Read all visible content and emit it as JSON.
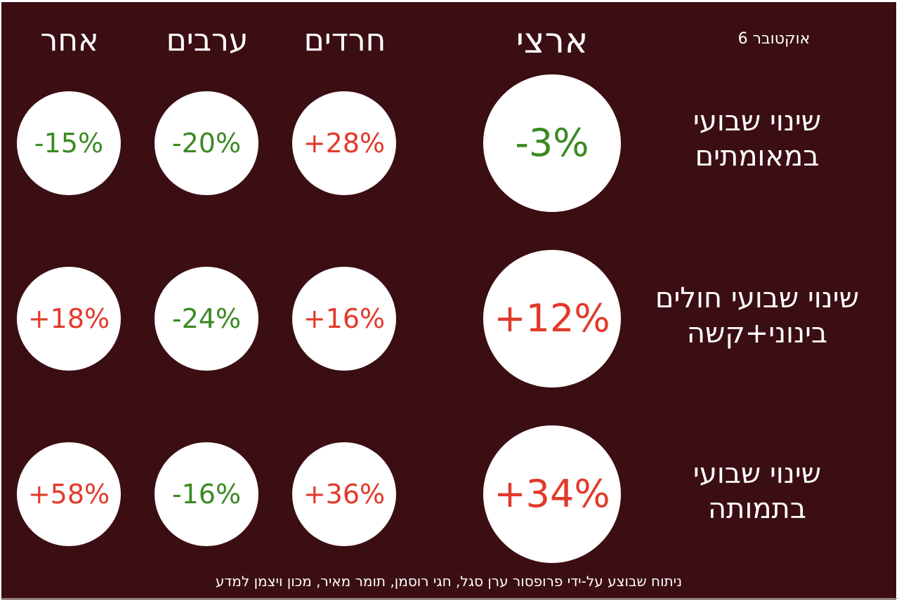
{
  "header": {
    "date": "אוקטובר 6",
    "columns": {
      "national": "ארצי",
      "haredi": "חרדים",
      "arab": "ערבים",
      "other": "אחר"
    }
  },
  "rows": [
    {
      "label_line1": "שינוי שבועי",
      "label_line2": "במאומתים",
      "national": "-3%",
      "haredi": "+28%",
      "arab": "-20%",
      "other": "-15%"
    },
    {
      "label_line1": "שינוי שבועי חולים",
      "label_line2": "בינוני+קשה",
      "national": "+12%",
      "haredi": "+16%",
      "arab": "-24%",
      "other": "+18%"
    },
    {
      "label_line1": "שינוי שבועי",
      "label_line2": "בתמותה",
      "national": "+34%",
      "haredi": "+36%",
      "arab": "-16%",
      "other": "+58%"
    }
  ],
  "footer": "ניתוח שבוצע על-ידי פרופסור ערן סגל, חגי רוסמן, תומר מאיר, מכון ויצמן למדע",
  "colors": {
    "background": "#3b0e13",
    "decrease": "#3a8a23",
    "increase": "#e23a2a",
    "circle": "#ffffff"
  }
}
